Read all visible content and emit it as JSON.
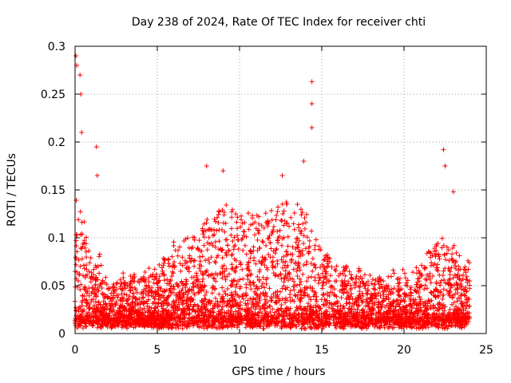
{
  "chart_data": {
    "type": "scatter",
    "title": "Day 238 of 2024, Rate Of TEC Index for receiver chti",
    "xlabel": "GPS time / hours",
    "ylabel": "ROTI / TECUs",
    "xlim": [
      0,
      25
    ],
    "ylim": [
      0,
      0.3
    ],
    "xticks": [
      0,
      5,
      10,
      15,
      20,
      25
    ],
    "yticks": [
      0,
      0.05,
      0.1,
      0.15,
      0.2,
      0.25,
      0.3
    ],
    "xtick_labels": [
      "0",
      "5",
      "10",
      "15",
      "20",
      "25"
    ],
    "ytick_labels": [
      "0",
      "0.05",
      "0.1",
      "0.15",
      "0.2",
      "0.25",
      "0.3"
    ],
    "grid": true,
    "marker": "+",
    "color": "#ff0000",
    "x_range_of_data": [
      0,
      24
    ],
    "notable_points": [
      {
        "x": 0.05,
        "y": 0.29
      },
      {
        "x": 0.1,
        "y": 0.28
      },
      {
        "x": 0.3,
        "y": 0.27
      },
      {
        "x": 0.35,
        "y": 0.25
      },
      {
        "x": 0.4,
        "y": 0.21
      },
      {
        "x": 1.3,
        "y": 0.195
      },
      {
        "x": 1.35,
        "y": 0.165
      },
      {
        "x": 8.0,
        "y": 0.175
      },
      {
        "x": 9.0,
        "y": 0.17
      },
      {
        "x": 12.6,
        "y": 0.165
      },
      {
        "x": 13.9,
        "y": 0.18
      },
      {
        "x": 14.4,
        "y": 0.263
      },
      {
        "x": 14.4,
        "y": 0.24
      },
      {
        "x": 14.4,
        "y": 0.215
      },
      {
        "x": 22.4,
        "y": 0.192
      },
      {
        "x": 22.5,
        "y": 0.175
      },
      {
        "x": 23.0,
        "y": 0.148
      }
    ]
  }
}
